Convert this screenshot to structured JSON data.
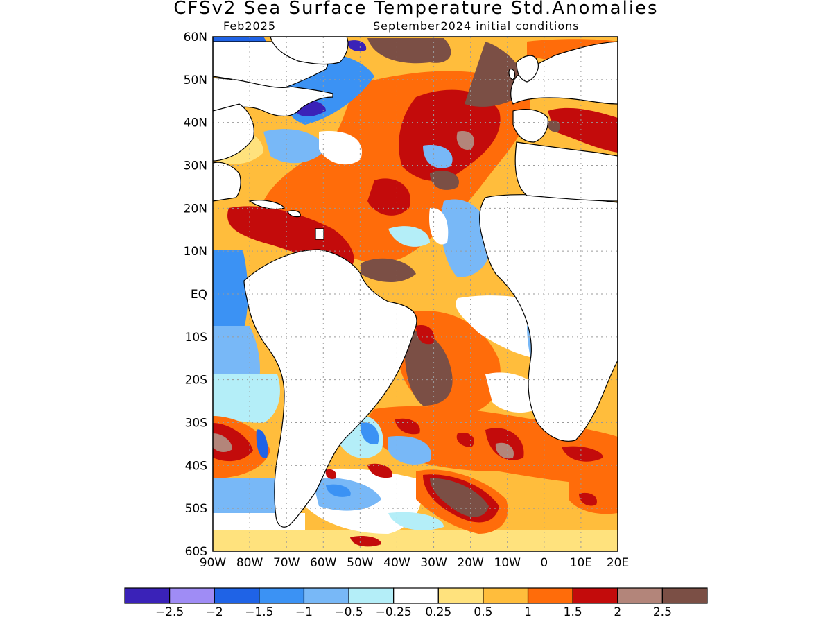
{
  "title": "CFSv2 Sea Surface Temperature Std.Anomalies",
  "subtitle_left": "Feb2025",
  "subtitle_right": "September2024 initial conditions",
  "lat_labels": [
    "60N",
    "50N",
    "40N",
    "30N",
    "20N",
    "10N",
    "EQ",
    "10S",
    "20S",
    "30S",
    "40S",
    "50S",
    "60S"
  ],
  "lon_labels": [
    "90W",
    "80W",
    "70W",
    "60W",
    "50W",
    "40W",
    "30W",
    "20W",
    "10W",
    "0",
    "10E",
    "20E"
  ],
  "colorbar": {
    "colors": [
      "#3a22b8",
      "#9f8cf5",
      "#1f63e6",
      "#3b92f4",
      "#78b8f7",
      "#b4eef8",
      "#ffffff",
      "#ffe27d",
      "#ffbd3c",
      "#ff6c0a",
      "#c30b0b",
      "#b3857a",
      "#7b4f45"
    ],
    "tick_labels": [
      "-2.5",
      "-2",
      "-1.5",
      "-1",
      "-0.5",
      "-0.25",
      "0.25",
      "0.5",
      "1",
      "1.5",
      "2",
      "2.5"
    ]
  }
}
